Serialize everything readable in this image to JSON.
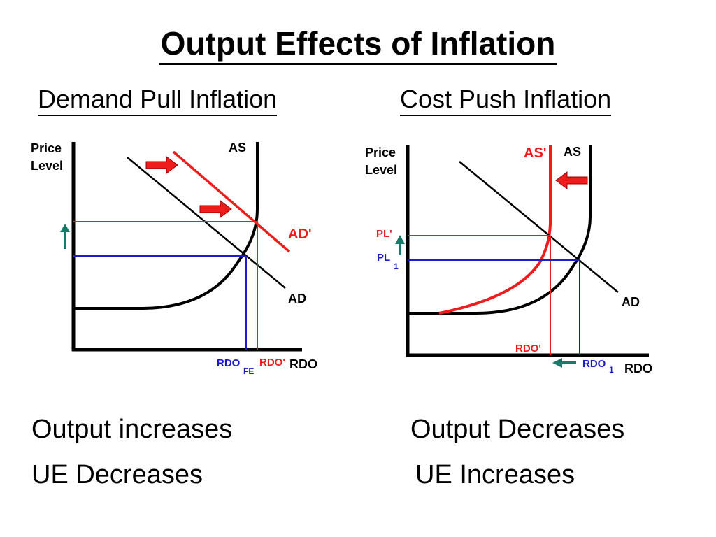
{
  "title": "Output Effects of Inflation",
  "left": {
    "heading": "Demand Pull Inflation",
    "effects": [
      "Output increases",
      "UE Decreases"
    ]
  },
  "right": {
    "heading": "Cost Push Inflation",
    "effects": [
      "Output Decreases",
      "UE Increases"
    ]
  },
  "colors": {
    "black": "#000000",
    "red": "#ee1c1c",
    "blue": "#1c1ccc",
    "teal": "#1a7a6a"
  },
  "chart_data": [
    {
      "type": "line",
      "title": "Demand Pull Inflation",
      "ylabel_line1": "Price",
      "ylabel_line2": "Level",
      "xlabel": "RDO",
      "curves": {
        "as": "AS",
        "ad": "AD",
        "ad_shifted": "AD'"
      },
      "markers": {
        "rdo_fe_main": "RDO",
        "rdo_fe_sub": "FE",
        "rdo_new": "RDO'"
      },
      "arrows": [
        "AD shifts right",
        "AD shifts right",
        "Price level up"
      ]
    },
    {
      "type": "line",
      "title": "Cost Push Inflation",
      "ylabel_line1": "Price",
      "ylabel_line2": "Level",
      "xlabel": "RDO",
      "curves": {
        "as": "AS",
        "as_shifted": "AS'",
        "ad": "AD"
      },
      "markers": {
        "pl_new": "PL'",
        "pl_old_main": "PL",
        "pl_old_sub": "1",
        "rdo_new": "RDO'",
        "rdo_old_main": "RDO",
        "rdo_old_sub": "1"
      },
      "arrows": [
        "AS shifts left",
        "Price level up",
        "Output down"
      ]
    }
  ]
}
